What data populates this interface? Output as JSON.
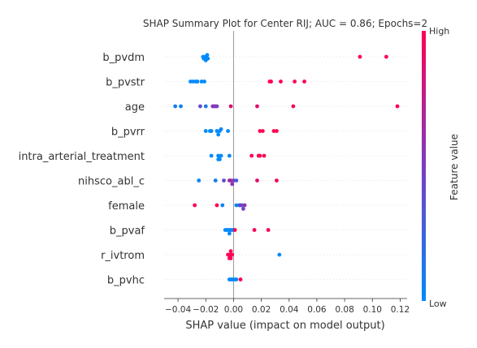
{
  "chart_data": {
    "type": "scatter",
    "title": "SHAP Summary Plot for Center RIJ; AUC = 0.86; Epochs=2",
    "xlabel": "SHAP value (impact on model output)",
    "xlim": [
      -0.05,
      0.125
    ],
    "xticks": [
      -0.04,
      -0.02,
      0.0,
      0.02,
      0.04,
      0.06,
      0.08,
      0.1,
      0.12
    ],
    "xtick_labels": [
      "−0.04",
      "−0.02",
      "0.00",
      "0.02",
      "0.04",
      "0.06",
      "0.08",
      "0.10",
      "0.12"
    ],
    "colorbar": {
      "label": "Feature value",
      "high": "High",
      "low": "Low",
      "low_color": "#008afb",
      "high_color": "#ff0052"
    },
    "grid": false,
    "features": [
      {
        "name": "b_pvdm",
        "points": [
          {
            "x": -0.02,
            "v": 0.0,
            "r": 1
          },
          {
            "x": -0.0195,
            "v": 0.0,
            "r": 0
          },
          {
            "x": -0.019,
            "v": 0.0,
            "r": -1
          },
          {
            "x": -0.0215,
            "v": 0.0,
            "r": 1
          },
          {
            "x": -0.0205,
            "v": 0.0,
            "r": 0
          },
          {
            "x": -0.02,
            "v": 0.0,
            "r": 2
          },
          {
            "x": -0.022,
            "v": 0.0,
            "r": 0
          },
          {
            "x": -0.0185,
            "v": 0.0,
            "r": 1
          },
          {
            "x": 0.091,
            "v": 1.0,
            "r": 0
          },
          {
            "x": 0.11,
            "v": 1.0,
            "r": 0
          }
        ]
      },
      {
        "name": "b_pvstr",
        "points": [
          {
            "x": -0.031,
            "v": 0.0,
            "r": 0
          },
          {
            "x": -0.029,
            "v": 0.0,
            "r": 0
          },
          {
            "x": -0.026,
            "v": 0.0,
            "r": 0
          },
          {
            "x": -0.023,
            "v": 0.0,
            "r": 0
          },
          {
            "x": -0.021,
            "v": 0.0,
            "r": 0
          },
          {
            "x": -0.027,
            "v": 0.0,
            "r": 0
          },
          {
            "x": 0.026,
            "v": 1.0,
            "r": 0
          },
          {
            "x": 0.027,
            "v": 1.0,
            "r": 0
          },
          {
            "x": 0.034,
            "v": 1.0,
            "r": 0
          },
          {
            "x": 0.044,
            "v": 1.0,
            "r": 0
          },
          {
            "x": 0.051,
            "v": 1.0,
            "r": 0
          }
        ]
      },
      {
        "name": "age",
        "points": [
          {
            "x": -0.042,
            "v": 0.1,
            "r": 0
          },
          {
            "x": -0.038,
            "v": 0.05,
            "r": 0
          },
          {
            "x": -0.024,
            "v": 0.4,
            "r": 0
          },
          {
            "x": -0.02,
            "v": 0.1,
            "r": 0
          },
          {
            "x": -0.015,
            "v": 0.5,
            "r": 0
          },
          {
            "x": -0.014,
            "v": 0.55,
            "r": 0
          },
          {
            "x": -0.013,
            "v": 0.6,
            "r": 0
          },
          {
            "x": -0.012,
            "v": 0.45,
            "r": 0
          },
          {
            "x": -0.002,
            "v": 0.85,
            "r": 0
          },
          {
            "x": 0.017,
            "v": 0.9,
            "r": 0
          },
          {
            "x": 0.043,
            "v": 0.95,
            "r": 0
          },
          {
            "x": 0.118,
            "v": 1.0,
            "r": 0
          }
        ]
      },
      {
        "name": "b_pvrr",
        "points": [
          {
            "x": -0.011,
            "v": 0.0,
            "r": 2
          },
          {
            "x": -0.02,
            "v": 0.0,
            "r": 0
          },
          {
            "x": -0.017,
            "v": 0.0,
            "r": 0
          },
          {
            "x": -0.016,
            "v": 0.0,
            "r": 0
          },
          {
            "x": -0.012,
            "v": 0.0,
            "r": 0
          },
          {
            "x": -0.01,
            "v": 0.0,
            "r": 0
          },
          {
            "x": -0.004,
            "v": 0.0,
            "r": 0
          },
          {
            "x": -0.009,
            "v": 0.0,
            "r": -1
          },
          {
            "x": 0.019,
            "v": 1.0,
            "r": 0
          },
          {
            "x": 0.021,
            "v": 1.0,
            "r": 0
          },
          {
            "x": 0.029,
            "v": 1.0,
            "r": 0
          },
          {
            "x": 0.031,
            "v": 1.0,
            "r": 0
          }
        ]
      },
      {
        "name": "intra_arterial_treatment",
        "points": [
          {
            "x": -0.011,
            "v": 0.0,
            "r": 2
          },
          {
            "x": -0.01,
            "v": 0.0,
            "r": 2
          },
          {
            "x": -0.016,
            "v": 0.0,
            "r": 0
          },
          {
            "x": -0.011,
            "v": 0.0,
            "r": 0
          },
          {
            "x": -0.009,
            "v": 0.0,
            "r": 0
          },
          {
            "x": -0.003,
            "v": 0.0,
            "r": 0
          },
          {
            "x": 0.013,
            "v": 1.0,
            "r": 0
          },
          {
            "x": 0.018,
            "v": 1.0,
            "r": 0
          },
          {
            "x": 0.019,
            "v": 1.0,
            "r": 0
          },
          {
            "x": 0.022,
            "v": 1.0,
            "r": 0
          }
        ]
      },
      {
        "name": "nihsco_abl_c",
        "points": [
          {
            "x": -0.025,
            "v": 0.05,
            "r": 0
          },
          {
            "x": -0.013,
            "v": 0.1,
            "r": 0
          },
          {
            "x": -0.007,
            "v": 0.4,
            "r": 0
          },
          {
            "x": -0.003,
            "v": 0.6,
            "r": 0
          },
          {
            "x": -0.001,
            "v": 0.55,
            "r": 2
          },
          {
            "x": -0.002,
            "v": 0.7,
            "r": 0
          },
          {
            "x": 0.0,
            "v": 0.45,
            "r": 0
          },
          {
            "x": 0.002,
            "v": 0.3,
            "r": 0
          },
          {
            "x": 0.017,
            "v": 0.9,
            "r": 0
          },
          {
            "x": 0.031,
            "v": 0.95,
            "r": 0
          }
        ]
      },
      {
        "name": "female",
        "points": [
          {
            "x": -0.028,
            "v": 1.0,
            "r": 0
          },
          {
            "x": -0.012,
            "v": 1.0,
            "r": 0
          },
          {
            "x": -0.008,
            "v": 0.05,
            "r": 0
          },
          {
            "x": 0.002,
            "v": 0.05,
            "r": 0
          },
          {
            "x": 0.004,
            "v": 0.05,
            "r": 0
          },
          {
            "x": 0.006,
            "v": 0.05,
            "r": 0
          },
          {
            "x": 0.007,
            "v": 0.45,
            "r": 2
          },
          {
            "x": 0.008,
            "v": 0.6,
            "r": 0
          },
          {
            "x": 0.005,
            "v": 0.5,
            "r": 0
          }
        ]
      },
      {
        "name": "b_pvaf",
        "points": [
          {
            "x": -0.003,
            "v": 0.0,
            "r": 2
          },
          {
            "x": -0.006,
            "v": 0.0,
            "r": 0
          },
          {
            "x": -0.005,
            "v": 0.0,
            "r": 0
          },
          {
            "x": -0.004,
            "v": 0.0,
            "r": 0
          },
          {
            "x": -0.003,
            "v": 0.0,
            "r": 0
          },
          {
            "x": -0.001,
            "v": 0.0,
            "r": 0
          },
          {
            "x": 0.0,
            "v": 0.0,
            "r": 0
          },
          {
            "x": -0.002,
            "v": 0.0,
            "r": 0
          },
          {
            "x": 0.001,
            "v": 1.0,
            "r": 0
          },
          {
            "x": 0.015,
            "v": 1.0,
            "r": 0
          },
          {
            "x": 0.025,
            "v": 1.0,
            "r": 0
          }
        ]
      },
      {
        "name": "r_ivtrom",
        "points": [
          {
            "x": -0.003,
            "v": 1.0,
            "r": 2
          },
          {
            "x": -0.002,
            "v": 1.0,
            "r": 2
          },
          {
            "x": -0.004,
            "v": 1.0,
            "r": 0
          },
          {
            "x": -0.003,
            "v": 1.0,
            "r": 0
          },
          {
            "x": -0.002,
            "v": 1.0,
            "r": 0
          },
          {
            "x": -0.001,
            "v": 1.0,
            "r": 0
          },
          {
            "x": -0.002,
            "v": 1.0,
            "r": -2
          },
          {
            "x": 0.033,
            "v": 0.0,
            "r": 0
          }
        ]
      },
      {
        "name": "b_pvhc",
        "points": [
          {
            "x": -0.003,
            "v": 0.0,
            "r": 0
          },
          {
            "x": -0.002,
            "v": 0.0,
            "r": 0
          },
          {
            "x": -0.001,
            "v": 0.0,
            "r": 0
          },
          {
            "x": 0.0,
            "v": 0.0,
            "r": 0
          },
          {
            "x": 0.001,
            "v": 0.0,
            "r": 0
          },
          {
            "x": 0.002,
            "v": 0.0,
            "r": 0
          },
          {
            "x": 0.005,
            "v": 1.0,
            "r": 0
          }
        ]
      }
    ]
  }
}
